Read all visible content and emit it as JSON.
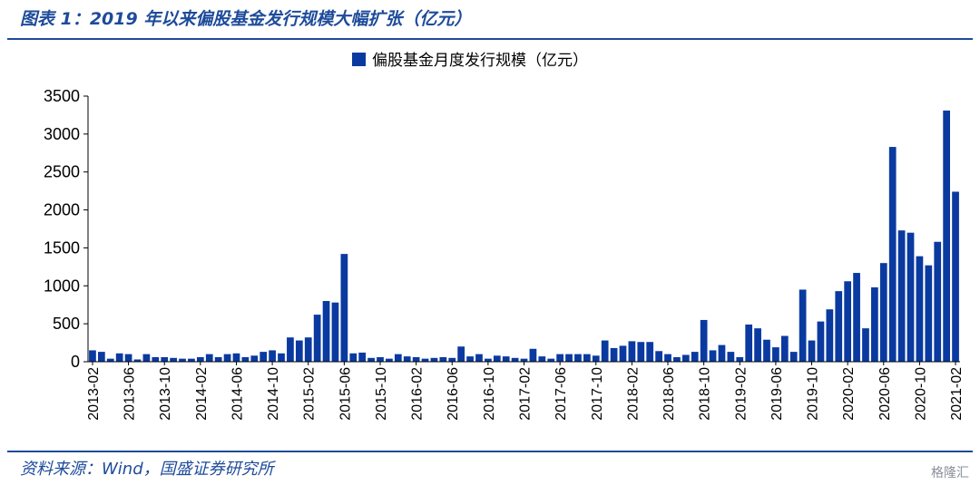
{
  "header": {
    "title": "图表 1：2019 年以来偏股基金发行规模大幅扩张（亿元）"
  },
  "footer": {
    "source": "资料来源：Wind，国盛证券研究所",
    "watermark": "格隆汇"
  },
  "colors": {
    "bar": "#0a3aa0",
    "accent": "#1e4b9a",
    "axis": "#000000"
  },
  "chart_data": {
    "type": "bar",
    "title": "",
    "xlabel": "",
    "ylabel": "",
    "ylim": [
      0,
      3500
    ],
    "yticks": [
      0,
      500,
      1000,
      1500,
      2000,
      2500,
      3000,
      3500
    ],
    "legend": "top-center",
    "series": [
      {
        "name": "偏股基金月度发行规模（亿元）"
      }
    ],
    "x_tick_labels": [
      "2013-02",
      "2013-06",
      "2013-10",
      "2014-02",
      "2014-06",
      "2014-10",
      "2015-02",
      "2015-06",
      "2015-10",
      "2016-02",
      "2016-06",
      "2016-10",
      "2017-02",
      "2017-06",
      "2017-10",
      "2018-02",
      "2018-06",
      "2018-10",
      "2019-02",
      "2019-06",
      "2019-10",
      "2020-02",
      "2020-06",
      "2020-10",
      "2021-02"
    ],
    "categories": [
      "2013-02",
      "2013-03",
      "2013-04",
      "2013-05",
      "2013-06",
      "2013-07",
      "2013-08",
      "2013-09",
      "2013-10",
      "2013-11",
      "2013-12",
      "2014-01",
      "2014-02",
      "2014-03",
      "2014-04",
      "2014-05",
      "2014-06",
      "2014-07",
      "2014-08",
      "2014-09",
      "2014-10",
      "2014-11",
      "2014-12",
      "2015-01",
      "2015-02",
      "2015-03",
      "2015-04",
      "2015-05",
      "2015-06",
      "2015-07",
      "2015-08",
      "2015-09",
      "2015-10",
      "2015-11",
      "2015-12",
      "2016-01",
      "2016-02",
      "2016-03",
      "2016-04",
      "2016-05",
      "2016-06",
      "2016-07",
      "2016-08",
      "2016-09",
      "2016-10",
      "2016-11",
      "2016-12",
      "2017-01",
      "2017-02",
      "2017-03",
      "2017-04",
      "2017-05",
      "2017-06",
      "2017-07",
      "2017-08",
      "2017-09",
      "2017-10",
      "2017-11",
      "2017-12",
      "2018-01",
      "2018-02",
      "2018-03",
      "2018-04",
      "2018-05",
      "2018-06",
      "2018-07",
      "2018-08",
      "2018-09",
      "2018-10",
      "2018-11",
      "2018-12",
      "2019-01",
      "2019-02",
      "2019-03",
      "2019-04",
      "2019-05",
      "2019-06",
      "2019-07",
      "2019-08",
      "2019-09",
      "2019-10",
      "2019-11",
      "2019-12",
      "2020-01",
      "2020-02",
      "2020-03",
      "2020-04",
      "2020-05",
      "2020-06",
      "2020-07",
      "2020-08",
      "2020-09",
      "2020-10",
      "2020-11",
      "2020-12",
      "2021-01",
      "2021-02"
    ],
    "values": [
      150,
      130,
      40,
      110,
      100,
      30,
      100,
      60,
      60,
      50,
      40,
      40,
      60,
      100,
      60,
      100,
      110,
      60,
      80,
      130,
      150,
      110,
      320,
      280,
      320,
      620,
      800,
      780,
      1420,
      110,
      120,
      50,
      60,
      40,
      100,
      70,
      60,
      40,
      50,
      60,
      50,
      200,
      70,
      100,
      40,
      80,
      70,
      50,
      40,
      170,
      70,
      40,
      100,
      100,
      100,
      100,
      80,
      280,
      180,
      210,
      270,
      260,
      260,
      140,
      100,
      60,
      90,
      130,
      550,
      150,
      220,
      130,
      60,
      490,
      440,
      290,
      190,
      340,
      130,
      950,
      280,
      530,
      690,
      930,
      1060,
      1170,
      440,
      980,
      1300,
      2830,
      1730,
      1700,
      1390,
      1270,
      1580,
      3310,
      2240
    ]
  }
}
